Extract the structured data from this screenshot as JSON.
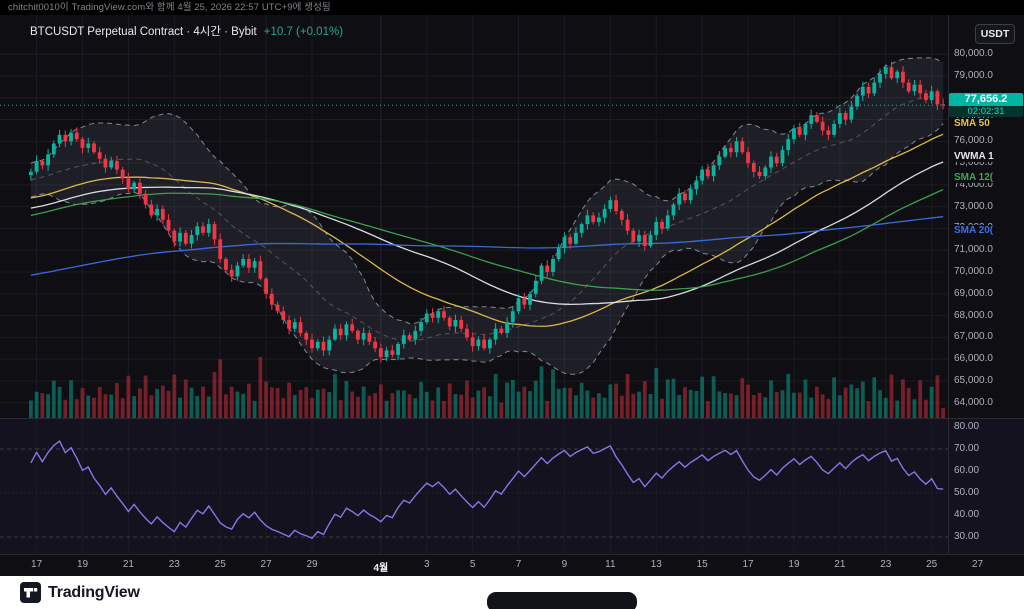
{
  "attribution": {
    "text": "chitchit0010이 TradingView.com와 함께 4월 25, 2026 22:57 UTC+9에 생성됨"
  },
  "header": {
    "symbol_title": "BTCUSDT Perpetual Contract · 4시간 · Bybit",
    "change_text": "+10.7 (+0.01%)",
    "currency_button": "USDT"
  },
  "last_price": {
    "label": "77,656.2",
    "value": 77656.2,
    "countdown": "02:02:31",
    "color": "#00b5a4"
  },
  "price_scale": {
    "labels": [
      "80,000.0",
      "79,000.0",
      "78,000.0",
      "77,000.0",
      "76,000.0",
      "75,000.0",
      "74,000.0",
      "73,000.0",
      "72,000.0",
      "71,000.0",
      "70,000.0",
      "69,000.0",
      "68,000.0",
      "67,000.0",
      "66,000.0",
      "65,000.0",
      "64,000.0"
    ],
    "values": [
      80000,
      79000,
      78000,
      77000,
      76000,
      75000,
      74000,
      73000,
      72000,
      71000,
      70000,
      69000,
      68000,
      67000,
      66000,
      65000,
      64000
    ]
  },
  "indicator_labels": [
    {
      "text": "SMA 50",
      "value": 76800,
      "color": "#e7c24a"
    },
    {
      "text": "VWMA 1",
      "value": 75300,
      "color": "#e4e7ee"
    },
    {
      "text": "SMA 12(",
      "value": 74300,
      "color": "#3fa650"
    },
    {
      "text": "SMA 20(",
      "value": 71900,
      "color": "#3e6fe8"
    }
  ],
  "rsi_scale": {
    "labels": [
      "80.00",
      "70.00",
      "60.00",
      "50.00",
      "40.00",
      "30.00"
    ],
    "values": [
      80,
      70,
      60,
      50,
      40,
      30
    ]
  },
  "time_axis": {
    "labels": [
      {
        "t": "17",
        "d": 0
      },
      {
        "t": "19",
        "d": 2
      },
      {
        "t": "21",
        "d": 4
      },
      {
        "t": "23",
        "d": 6
      },
      {
        "t": "25",
        "d": 8
      },
      {
        "t": "27",
        "d": 10
      },
      {
        "t": "29",
        "d": 12
      },
      {
        "t": "4월",
        "d": 15,
        "month": true
      },
      {
        "t": "3",
        "d": 17
      },
      {
        "t": "5",
        "d": 19
      },
      {
        "t": "7",
        "d": 21
      },
      {
        "t": "9",
        "d": 23
      },
      {
        "t": "11",
        "d": 25
      },
      {
        "t": "13",
        "d": 27
      },
      {
        "t": "15",
        "d": 29
      },
      {
        "t": "17",
        "d": 31
      },
      {
        "t": "19",
        "d": 33
      },
      {
        "t": "21",
        "d": 35
      },
      {
        "t": "23",
        "d": 37
      },
      {
        "t": "25",
        "d": 39
      },
      {
        "t": "27",
        "d": 41
      }
    ]
  },
  "footer": {
    "brand": "TradingView"
  },
  "chart_data": {
    "type": "candlestick",
    "title": "BTCUSDT Perpetual Contract",
    "interval": "4시간",
    "exchange": "Bybit",
    "last_close": 77656.2,
    "change": "+10.7 (+0.01%)",
    "price_range": [
      63300,
      81800
    ],
    "candles_per_day": 4,
    "x_start": "3/17",
    "x_end": "4/26",
    "closes": [
      74600,
      75100,
      74900,
      75400,
      75900,
      76300,
      76000,
      76400,
      76100,
      75700,
      75900,
      75500,
      75200,
      74800,
      75100,
      74700,
      74300,
      73800,
      74100,
      73600,
      73100,
      72600,
      72900,
      72400,
      71900,
      71400,
      71800,
      71300,
      71700,
      72100,
      71800,
      72200,
      71500,
      70600,
      70100,
      69800,
      70300,
      70600,
      70200,
      70500,
      69700,
      69000,
      68500,
      68200,
      67800,
      67400,
      67700,
      67200,
      66900,
      66500,
      66800,
      66400,
      66900,
      67400,
      67100,
      67600,
      67300,
      66900,
      67200,
      66800,
      66500,
      66100,
      66400,
      66200,
      66700,
      67100,
      66900,
      67300,
      67700,
      68100,
      67900,
      68200,
      67900,
      67500,
      67800,
      67400,
      67000,
      66600,
      66900,
      66500,
      66900,
      67400,
      67200,
      67700,
      68200,
      68800,
      68500,
      69000,
      69600,
      70300,
      70000,
      70600,
      71100,
      71600,
      71300,
      71800,
      72200,
      72600,
      72300,
      72500,
      72900,
      73300,
      72800,
      72400,
      71900,
      71400,
      71700,
      71200,
      71700,
      72300,
      72000,
      72600,
      73100,
      73600,
      73300,
      73800,
      74200,
      74700,
      74400,
      74900,
      75300,
      75700,
      75500,
      76000,
      75500,
      75000,
      74600,
      74400,
      74800,
      75300,
      75000,
      75600,
      76100,
      76600,
      76300,
      76800,
      77200,
      76900,
      76500,
      76300,
      76800,
      77300,
      77000,
      77600,
      78100,
      78500,
      78200,
      78700,
      79100,
      79400,
      78900,
      79200,
      78700,
      78300,
      78600,
      78200,
      77900,
      78300,
      77700,
      77656
    ],
    "up_color": "#0cb39f",
    "down_color": "#f23645",
    "overlays": [
      {
        "name": "BB(20,2)",
        "style": "band-dashed",
        "color": "rgba(225,228,238,0.55)"
      },
      {
        "name": "SMA 50",
        "window": 50,
        "color": "#e7c24a"
      },
      {
        "name": "VWMA",
        "window": 70,
        "color": "#e4e7ee"
      },
      {
        "name": "SMA 120",
        "window": 85,
        "color": "#3fa650"
      },
      {
        "name": "SMA 200",
        "window": 200,
        "color": "#3e6fe8"
      }
    ],
    "lower_pane": {
      "type": "RSI",
      "color": "#8b74e8",
      "levels_dashed": [
        70,
        30
      ],
      "level_dotted": 50,
      "range": [
        25,
        85
      ]
    }
  }
}
